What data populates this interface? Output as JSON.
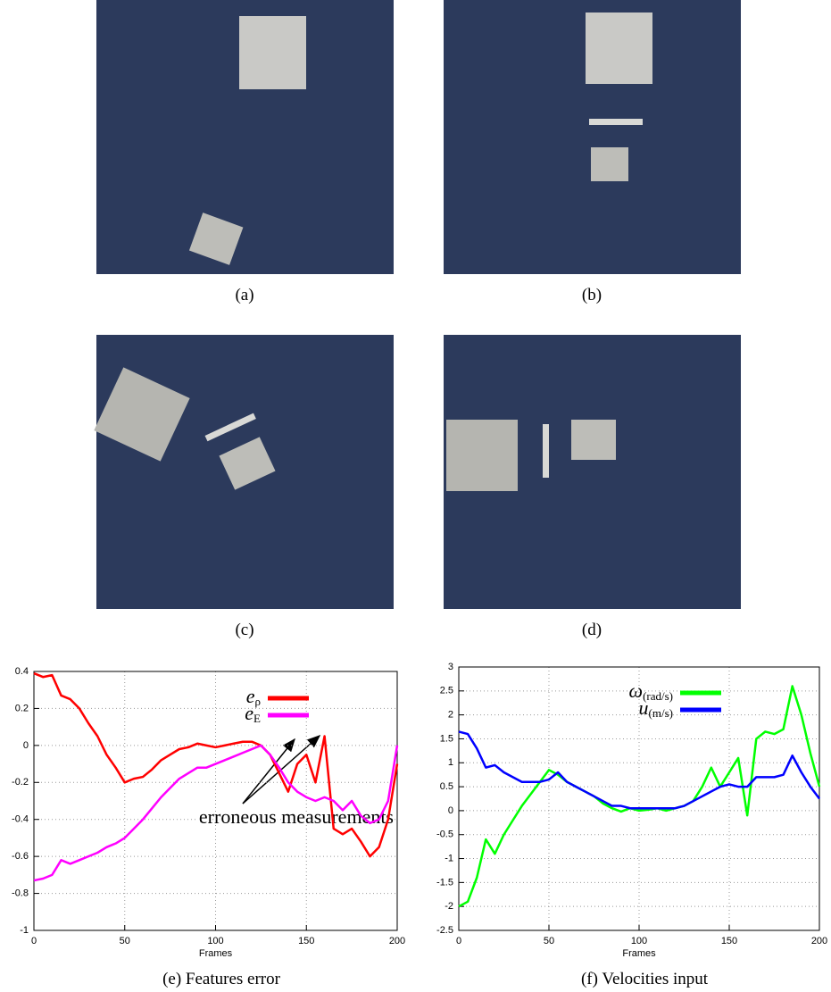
{
  "panels": [
    {
      "caption": "(a)"
    },
    {
      "caption": "(b)"
    },
    {
      "caption": "(c)"
    },
    {
      "caption": "(d)"
    }
  ],
  "chart_data": [
    {
      "type": "line",
      "caption": "(e) Features error",
      "xlabel": "Frames",
      "annotation": "erroneous measurements",
      "xlim": [
        0,
        200
      ],
      "xticks": [
        0,
        50,
        100,
        150,
        200
      ],
      "ylim": [
        -1,
        0.4
      ],
      "yticks": [
        -1,
        -0.8,
        -0.6,
        -0.4,
        -0.2,
        0,
        0.2,
        0.4
      ],
      "grid": true,
      "x": [
        0,
        5,
        10,
        15,
        20,
        25,
        30,
        35,
        40,
        45,
        50,
        55,
        60,
        65,
        70,
        75,
        80,
        85,
        90,
        95,
        100,
        105,
        110,
        115,
        120,
        125,
        130,
        135,
        140,
        145,
        150,
        155,
        160,
        165,
        170,
        175,
        180,
        185,
        190,
        195,
        200
      ],
      "series": [
        {
          "name": "e",
          "name_subscript": "ρ",
          "color": "#ff0000",
          "values": [
            0.39,
            0.37,
            0.38,
            0.27,
            0.25,
            0.2,
            0.12,
            0.05,
            -0.05,
            -0.12,
            -0.2,
            -0.18,
            -0.17,
            -0.13,
            -0.08,
            -0.05,
            -0.02,
            -0.01,
            0.01,
            0,
            -0.01,
            0,
            0.01,
            0.02,
            0.02,
            0,
            -0.05,
            -0.15,
            -0.25,
            -0.1,
            -0.05,
            -0.2,
            0.05,
            -0.45,
            -0.48,
            -0.45,
            -0.52,
            -0.6,
            -0.55,
            -0.4,
            -0.1
          ]
        },
        {
          "name": "e",
          "name_subscript": "E",
          "color": "#ff00ff",
          "values": [
            -0.73,
            -0.72,
            -0.7,
            -0.62,
            -0.64,
            -0.62,
            -0.6,
            -0.58,
            -0.55,
            -0.53,
            -0.5,
            -0.45,
            -0.4,
            -0.34,
            -0.28,
            -0.23,
            -0.18,
            -0.15,
            -0.12,
            -0.12,
            -0.1,
            -0.08,
            -0.06,
            -0.04,
            -0.02,
            0,
            -0.05,
            -0.12,
            -0.2,
            -0.25,
            -0.28,
            -0.3,
            -0.28,
            -0.3,
            -0.35,
            -0.3,
            -0.38,
            -0.42,
            -0.4,
            -0.3,
            0
          ]
        }
      ]
    },
    {
      "type": "line",
      "caption": "(f) Velocities input",
      "xlabel": "Frames",
      "xlim": [
        0,
        200
      ],
      "xticks": [
        0,
        50,
        100,
        150,
        200
      ],
      "ylim": [
        -2.5,
        3
      ],
      "yticks": [
        -2.5,
        -2,
        -1.5,
        -1,
        -0.5,
        0,
        0.5,
        1,
        1.5,
        2,
        2.5,
        3
      ],
      "grid": true,
      "x": [
        0,
        5,
        10,
        15,
        20,
        25,
        30,
        35,
        40,
        45,
        50,
        55,
        60,
        65,
        70,
        75,
        80,
        85,
        90,
        95,
        100,
        105,
        110,
        115,
        120,
        125,
        130,
        135,
        140,
        145,
        150,
        155,
        160,
        165,
        170,
        175,
        180,
        185,
        190,
        195,
        200
      ],
      "series": [
        {
          "name": "ω",
          "name_subscript": "(rad/s)",
          "color": "#00ff00",
          "values": [
            -2,
            -1.9,
            -1.4,
            -0.6,
            -0.9,
            -0.5,
            -0.2,
            0.1,
            0.35,
            0.6,
            0.85,
            0.75,
            0.6,
            0.5,
            0.4,
            0.3,
            0.15,
            0.05,
            -0.02,
            0.05,
            0,
            0.02,
            0.05,
            0,
            0.05,
            0.1,
            0.2,
            0.5,
            0.9,
            0.5,
            0.8,
            1.1,
            -0.1,
            1.5,
            1.65,
            1.6,
            1.7,
            2.6,
            2,
            1.2,
            0.5
          ]
        },
        {
          "name": "u",
          "name_subscript": "(m/s)",
          "color": "#0000ff",
          "values": [
            1.65,
            1.6,
            1.3,
            0.9,
            0.95,
            0.8,
            0.7,
            0.6,
            0.6,
            0.6,
            0.65,
            0.8,
            0.6,
            0.5,
            0.4,
            0.3,
            0.2,
            0.1,
            0.1,
            0.05,
            0.05,
            0.05,
            0.05,
            0.05,
            0.05,
            0.1,
            0.2,
            0.3,
            0.4,
            0.5,
            0.55,
            0.5,
            0.5,
            0.7,
            0.7,
            0.7,
            0.75,
            1.15,
            0.8,
            0.5,
            0.25
          ]
        }
      ]
    }
  ]
}
